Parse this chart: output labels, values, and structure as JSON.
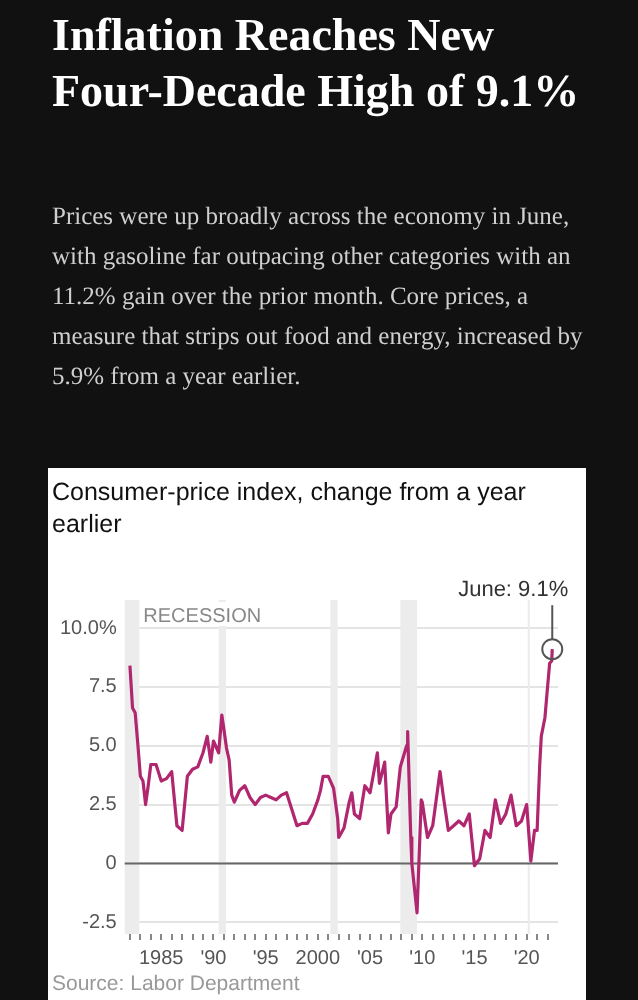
{
  "chart_data": {
    "type": "line",
    "title": "Inflation Reaches New Four-Decade High of 9.1%",
    "subtitle": "Prices were up broadly across the economy in June, with gasoline far outpacing other categories with an 11.2% gain over the prior month. Core prices, a measure that strips out food and energy, increased by 5.9% from a year earlier.",
    "ylabel": "Consumer-price index, change from a year earlier",
    "x": [
      1982.0,
      1982.25,
      1982.5,
      1982.75,
      1983.0,
      1983.25,
      1983.5,
      1983.75,
      1984.0,
      1984.5,
      1985.0,
      1985.5,
      1986.0,
      1986.5,
      1986.75,
      1987.0,
      1987.5,
      1988.0,
      1988.5,
      1989.0,
      1989.4,
      1989.75,
      1990.0,
      1990.5,
      1990.8,
      1991.0,
      1991.25,
      1991.5,
      1991.75,
      1992.0,
      1992.5,
      1993.0,
      1993.5,
      1994.0,
      1994.5,
      1995.0,
      1995.5,
      1996.0,
      1996.5,
      1997.0,
      1997.5,
      1998.0,
      1998.5,
      1999.0,
      1999.5,
      2000.0,
      2000.25,
      2000.5,
      2001.0,
      2001.5,
      2001.9,
      2002.0,
      2002.5,
      2003.0,
      2003.25,
      2003.5,
      2004.0,
      2004.5,
      2005.0,
      2005.7,
      2005.9,
      2006.4,
      2006.75,
      2007.0,
      2007.5,
      2007.9,
      2008.5,
      2008.6,
      2008.9,
      2009.0,
      2009.5,
      2009.9,
      2010.0,
      2010.5,
      2011.0,
      2011.7,
      2012.0,
      2012.5,
      2013.0,
      2013.5,
      2014.0,
      2014.5,
      2015.0,
      2015.5,
      2016.0,
      2016.5,
      2017.0,
      2017.5,
      2018.0,
      2018.5,
      2019.0,
      2019.5,
      2020.0,
      2020.4,
      2020.75,
      2021.0,
      2021.25,
      2021.4,
      2021.75,
      2022.0,
      2022.2,
      2022.4,
      2022.45
    ],
    "series": [
      {
        "color": "#b0276f",
        "values": [
          8.4,
          6.6,
          6.4,
          5.1,
          3.7,
          3.5,
          2.5,
          3.3,
          4.2,
          4.2,
          3.5,
          3.6,
          3.9,
          1.6,
          1.5,
          1.4,
          3.7,
          4.0,
          4.1,
          4.7,
          5.4,
          4.3,
          5.2,
          4.7,
          6.3,
          5.7,
          4.9,
          4.4,
          2.9,
          2.6,
          3.1,
          3.3,
          2.8,
          2.5,
          2.8,
          2.9,
          2.8,
          2.7,
          2.9,
          3.0,
          2.3,
          1.6,
          1.7,
          1.7,
          2.1,
          2.7,
          3.1,
          3.7,
          3.7,
          3.2,
          1.9,
          1.1,
          1.5,
          2.6,
          3.0,
          2.1,
          1.9,
          3.3,
          3.0,
          4.7,
          3.4,
          4.3,
          1.3,
          2.1,
          2.4,
          4.1,
          5.0,
          5.6,
          1.1,
          0.0,
          -2.1,
          2.7,
          2.6,
          1.1,
          1.6,
          3.9,
          2.9,
          1.4,
          1.6,
          1.8,
          1.6,
          2.1,
          -0.1,
          0.2,
          1.4,
          1.1,
          2.7,
          1.7,
          2.1,
          2.9,
          1.6,
          1.8,
          2.5,
          0.1,
          1.4,
          1.4,
          4.2,
          5.4,
          6.2,
          7.5,
          8.5,
          8.6,
          9.1
        ]
      }
    ],
    "xlim": [
      1981.5,
      2023
    ],
    "xticks": [
      {
        "value": 1982,
        "label": null
      },
      {
        "value": 1983,
        "label": null
      },
      {
        "value": 1984,
        "label": null
      },
      {
        "value": 1985,
        "label": "1985"
      },
      {
        "value": 1986,
        "label": null
      },
      {
        "value": 1987,
        "label": null
      },
      {
        "value": 1988,
        "label": null
      },
      {
        "value": 1989,
        "label": null
      },
      {
        "value": 1990,
        "label": "'90"
      },
      {
        "value": 1991,
        "label": null
      },
      {
        "value": 1992,
        "label": null
      },
      {
        "value": 1993,
        "label": null
      },
      {
        "value": 1994,
        "label": null
      },
      {
        "value": 1995,
        "label": "'95"
      },
      {
        "value": 1996,
        "label": null
      },
      {
        "value": 1997,
        "label": null
      },
      {
        "value": 1998,
        "label": null
      },
      {
        "value": 1999,
        "label": null
      },
      {
        "value": 2000,
        "label": "2000"
      },
      {
        "value": 2001,
        "label": null
      },
      {
        "value": 2002,
        "label": null
      },
      {
        "value": 2003,
        "label": null
      },
      {
        "value": 2004,
        "label": null
      },
      {
        "value": 2005,
        "label": "'05"
      },
      {
        "value": 2006,
        "label": null
      },
      {
        "value": 2007,
        "label": null
      },
      {
        "value": 2008,
        "label": null
      },
      {
        "value": 2009,
        "label": null
      },
      {
        "value": 2010,
        "label": "'10"
      },
      {
        "value": 2011,
        "label": null
      },
      {
        "value": 2012,
        "label": null
      },
      {
        "value": 2013,
        "label": null
      },
      {
        "value": 2014,
        "label": null
      },
      {
        "value": 2015,
        "label": "'15"
      },
      {
        "value": 2016,
        "label": null
      },
      {
        "value": 2017,
        "label": null
      },
      {
        "value": 2018,
        "label": null
      },
      {
        "value": 2019,
        "label": null
      },
      {
        "value": 2020,
        "label": "'20"
      },
      {
        "value": 2021,
        "label": null
      },
      {
        "value": 2022,
        "label": null
      }
    ],
    "ylim": [
      -3,
      10
    ],
    "yticks": [
      {
        "value": 10,
        "label": "10.0%"
      },
      7.5,
      {
        "value": 5,
        "label": "5.0"
      },
      2.5,
      0,
      -2.5
    ],
    "grid": "y",
    "legend": false,
    "marker": "none",
    "line_style": "solid",
    "ref_lines": [
      {
        "axis": "y",
        "value": 0,
        "color": "#666666"
      }
    ],
    "bands": [
      {
        "axis": "x",
        "from": 1981.5,
        "to": 1982.9,
        "label": "RECESSION",
        "color": "#ececec"
      },
      {
        "axis": "x",
        "from": 1990.5,
        "to": 1991.2,
        "color": "#ececec"
      },
      {
        "axis": "x",
        "from": 2001.2,
        "to": 2001.9,
        "color": "#ececec"
      },
      {
        "axis": "x",
        "from": 2007.9,
        "to": 2009.5,
        "color": "#ececec"
      },
      {
        "axis": "x",
        "from": 2020.1,
        "to": 2020.3,
        "color": "#ececec"
      }
    ],
    "annotations": [
      {
        "text": "June: 9.1%",
        "x": 2022.45,
        "y": 9.1
      },
      "Source: Labor Department"
    ]
  }
}
